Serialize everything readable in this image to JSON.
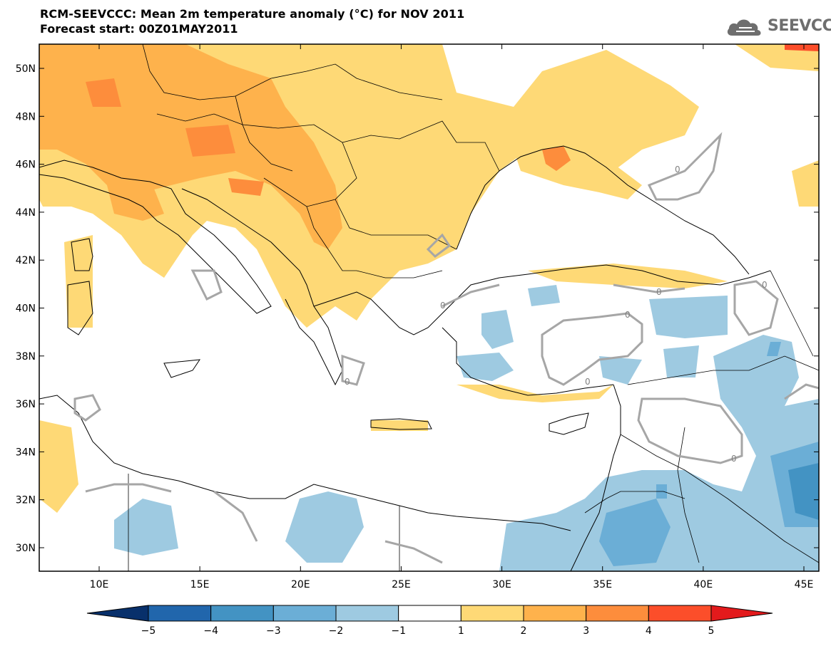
{
  "header": {
    "title": "RCM-SEEVCCC: Mean 2m temperature anomaly (°C) for NOV 2011",
    "subtitle": "Forecast start: 00Z01MAY2011",
    "logo_text": "SEEVCCC"
  },
  "map": {
    "lat_ticks": [
      "50N",
      "48N",
      "46N",
      "44N",
      "42N",
      "40N",
      "38N",
      "36N",
      "34N",
      "32N",
      "30N"
    ],
    "lat_values": [
      50,
      48,
      46,
      44,
      42,
      40,
      38,
      36,
      34,
      32,
      30
    ],
    "lon_ticks": [
      "10E",
      "15E",
      "20E",
      "25E",
      "30E",
      "35E",
      "40E",
      "45E"
    ],
    "lon_values": [
      10,
      15,
      20,
      25,
      30,
      35,
      40,
      45
    ],
    "contour_label": "0"
  },
  "colorbar": {
    "labels": [
      "−5",
      "−4",
      "−3",
      "−2",
      "−1",
      "1",
      "2",
      "3",
      "4",
      "5"
    ],
    "colors": [
      "#08306b",
      "#2166ac",
      "#4393c3",
      "#6baed6",
      "#9ecae1",
      "#ffffff",
      "#fed976",
      "#feb24c",
      "#fd8d3c",
      "#fc4e2a",
      "#e31a1c"
    ]
  }
}
